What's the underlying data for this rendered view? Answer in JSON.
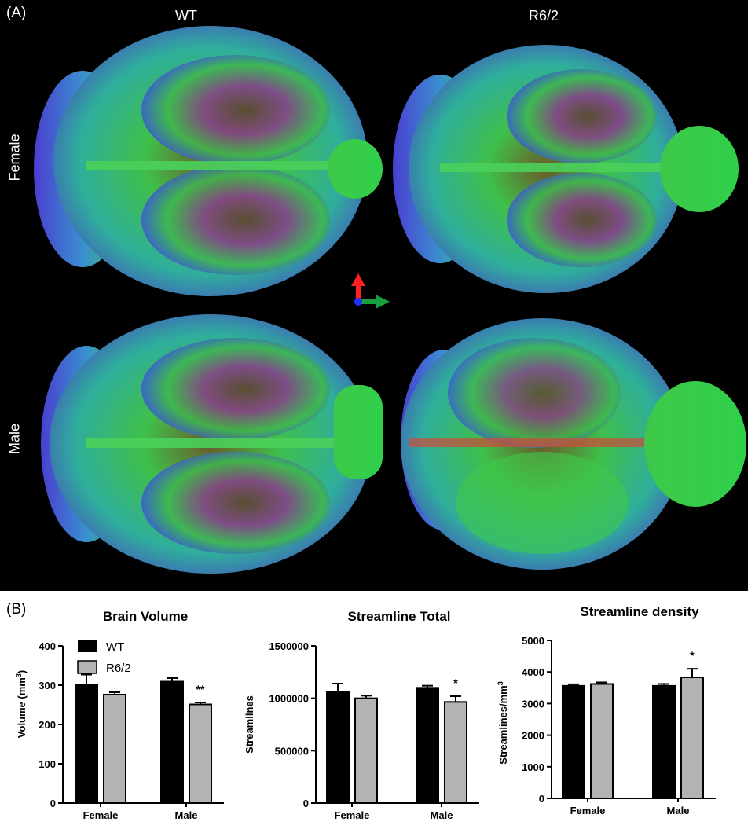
{
  "panel_a": {
    "letter": "(A)",
    "columns": [
      "WT",
      "R6/2"
    ],
    "rows": [
      "Female",
      "Male"
    ]
  },
  "panel_b": {
    "letter": "(B)"
  },
  "colors": {
    "wt": "#000000",
    "r62": "#b3b3b3",
    "axis": "#000000",
    "background_a": "#000000"
  },
  "icons": {
    "orientation": "orientation-axes-icon"
  },
  "chart_data": [
    {
      "type": "bar",
      "title": "Brain Volume",
      "ylabel": "Volume (mm³)",
      "ylabel_base": "Volume (mm",
      "ylabel_sup": "3",
      "ylabel_end": ")",
      "categories": [
        "Female",
        "Male"
      ],
      "ylim": [
        0,
        400
      ],
      "yticks": [
        0,
        100,
        200,
        300,
        400
      ],
      "yticklabels": [
        "0",
        "100",
        "200",
        "300",
        "400"
      ],
      "legend": "top-left",
      "series": [
        {
          "name": "WT",
          "values": [
            300,
            309
          ],
          "errors": [
            27,
            9
          ]
        },
        {
          "name": "R6/2",
          "values": [
            276,
            251
          ],
          "errors": [
            6,
            5
          ]
        }
      ],
      "annotations": [
        {
          "category": "Male",
          "series": "R6/2",
          "text": "**"
        }
      ]
    },
    {
      "type": "bar",
      "title": "Streamline Total",
      "ylabel": "Streamlines",
      "categories": [
        "Female",
        "Male"
      ],
      "ylim": [
        0,
        1500000
      ],
      "yticks": [
        0,
        500000,
        1000000,
        1500000
      ],
      "yticklabels": [
        "0",
        "500000",
        "1000000",
        "1500000"
      ],
      "series": [
        {
          "name": "WT",
          "values": [
            1065000,
            1100000
          ],
          "errors": [
            75000,
            20000
          ]
        },
        {
          "name": "R6/2",
          "values": [
            1000000,
            965000
          ],
          "errors": [
            25000,
            55000
          ]
        }
      ],
      "annotations": [
        {
          "category": "Male",
          "series": "R6/2",
          "text": "*"
        }
      ]
    },
    {
      "type": "bar",
      "title": "Streamline density",
      "ylabel": "Streamlines/mm³",
      "ylabel_base": "Streamlines/mm",
      "ylabel_sup": "3",
      "ylabel_end": "",
      "categories": [
        "Female",
        "Male"
      ],
      "ylim": [
        0,
        5000
      ],
      "yticks": [
        0,
        1000,
        2000,
        3000,
        4000,
        5000
      ],
      "yticklabels": [
        "0",
        "1000",
        "2000",
        "3000",
        "4000",
        "5000"
      ],
      "series": [
        {
          "name": "WT",
          "values": [
            3560,
            3560
          ],
          "errors": [
            50,
            60
          ]
        },
        {
          "name": "R6/2",
          "values": [
            3620,
            3830
          ],
          "errors": [
            50,
            270
          ]
        }
      ],
      "annotations": [
        {
          "category": "Male",
          "series": "R6/2",
          "text": "*"
        }
      ]
    }
  ]
}
